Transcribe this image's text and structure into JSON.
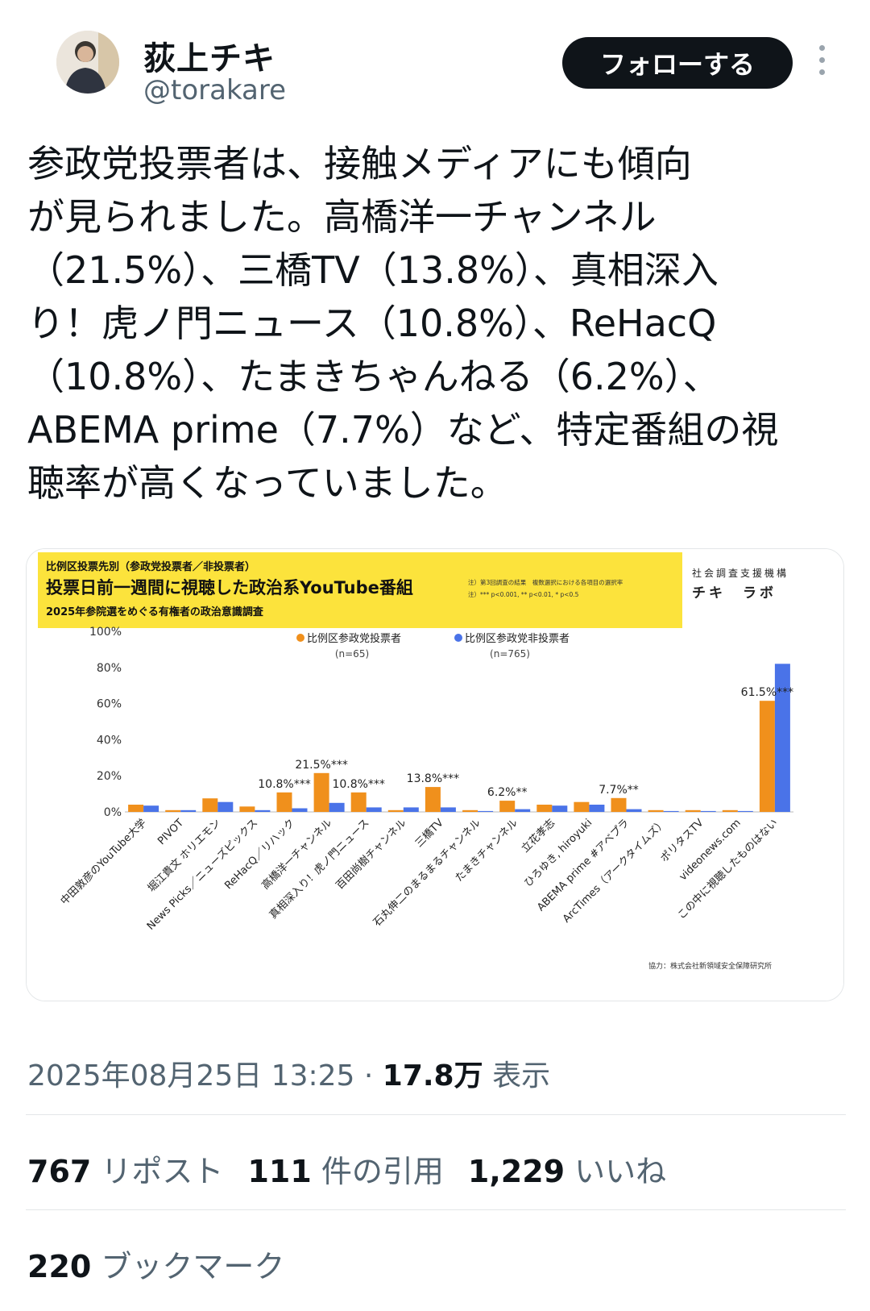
{
  "user": {
    "display_name": "荻上チキ",
    "handle": "@torakare",
    "follow_label": "フォローする"
  },
  "tweet": {
    "text": "参政党投票者は、接触メディアにも傾向\nが見られました。高橋洋一チャンネル\n（21.5%）、三橋TV（13.8%）、真相深入\nり！虎ノ門ニュース（10.8%）、ReHacQ\n（10.8%）、たまきちゃんねる（6.2%）、\nABEMA prime（7.7%）など、特定番組の視\n聴率が高くなっていました。",
    "timestamp": "2025年08月25日 13:25",
    "views_count": "17.8万",
    "views_label": "表示"
  },
  "stats": {
    "reposts_count": "767",
    "reposts_label": "リポスト",
    "quotes_count": "111",
    "quotes_label": "件の引用",
    "likes_count": "1,229",
    "likes_label": "いいね",
    "bookmarks_count": "220",
    "bookmarks_label": "ブックマーク"
  },
  "chart_header": {
    "line1": "比例区投票先別（参政党投票者／非投票者）",
    "line2": "投票日前一週間に視聴した政治系YouTube番組",
    "line3": "2025年参院選をめぐる有権者の政治意識調査",
    "note1": "注）第3回調査の結果　複数選択における各項目の選択率",
    "note2": "注）*** p<0.001, ** p<0.01, * p<0.5",
    "org_line1": "社会調査支援機構",
    "org_line2": "チキ　ラボ",
    "credit": "協力：株式会社新領域安全保障研究所"
  },
  "colors": {
    "orange": "#f0901c",
    "blue": "#4a73e8",
    "yellow": "#fce33c"
  },
  "chart_data": {
    "type": "bar",
    "ylim": [
      0,
      100
    ],
    "yticks": [
      "100%",
      "80%",
      "60%",
      "40%",
      "20%",
      "0%"
    ],
    "grid": false,
    "legend_position": "top-center",
    "categories": [
      "中田敦彦のYouTube大学",
      "PIVOT",
      "堀江貴文 ホリエモン",
      "News Picks／ニューズピックス",
      "ReHacQ／リハック",
      "高橋洋一チャンネル",
      "真相深入り！虎ノ門ニュース",
      "百田尚樹チャンネル",
      "三橋TV",
      "石丸伸二のまるまるチャンネル",
      "たまきチャンネル",
      "立花孝志",
      "ひろゆき, hiroyuki",
      "ABEMA prime #アベプラ",
      "ArcTimes（アークタイムズ）",
      "ポリタスTV",
      "videonews.com",
      "この中に視聴したものはない"
    ],
    "series": [
      {
        "name": "比例区参政党投票者",
        "n": "(n=65)",
        "color": "#f0901c",
        "values": [
          4.0,
          1.0,
          7.5,
          3.0,
          10.8,
          21.5,
          10.8,
          1.0,
          13.8,
          1.0,
          6.2,
          4.0,
          5.5,
          7.7,
          1.0,
          1.0,
          1.0,
          61.5
        ]
      },
      {
        "name": "比例区参政党非投票者",
        "n": "(n=765)",
        "color": "#4a73e8",
        "values": [
          3.5,
          1.0,
          5.5,
          1.0,
          2.0,
          5.0,
          2.5,
          2.5,
          2.5,
          0.5,
          1.5,
          3.5,
          4.0,
          1.5,
          0.5,
          0.5,
          0.5,
          82.0
        ]
      }
    ],
    "annotations": [
      {
        "category": "ReHacQ／リハック",
        "label": "10.8%***"
      },
      {
        "category": "高橋洋一チャンネル",
        "label": "21.5%***"
      },
      {
        "category": "真相深入り！虎ノ門ニュース",
        "label": "10.8%***"
      },
      {
        "category": "三橋TV",
        "label": "13.8%***"
      },
      {
        "category": "たまきチャンネル",
        "label": "6.2%**"
      },
      {
        "category": "ABEMA prime #アベプラ",
        "label": "7.7%**"
      },
      {
        "category": "この中に視聴したものはない",
        "label": "61.5%***"
      }
    ]
  }
}
